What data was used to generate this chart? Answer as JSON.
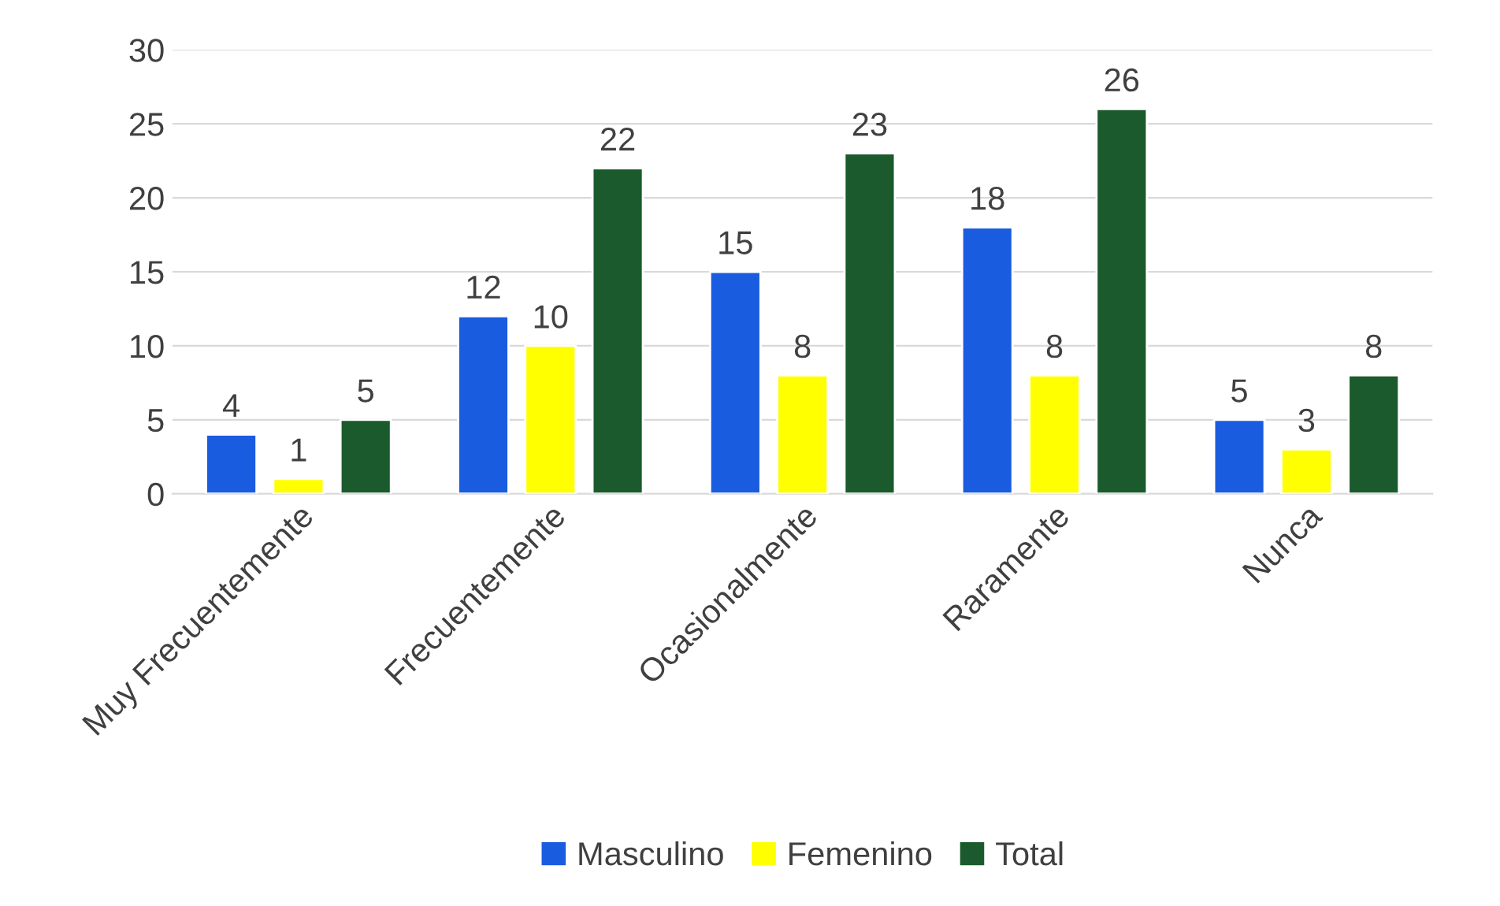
{
  "chart_data": {
    "type": "bar",
    "categories": [
      "Muy Frecuentemente",
      "Frecuentemente",
      "Ocasionalmente",
      "Raramente",
      "Nunca"
    ],
    "series": [
      {
        "name": "Masculino",
        "color": "#1a5ce0",
        "values": [
          4,
          12,
          15,
          18,
          5
        ]
      },
      {
        "name": "Femenino",
        "color": "#ffff00",
        "values": [
          1,
          10,
          8,
          8,
          3
        ]
      },
      {
        "name": "Total",
        "color": "#1a5a2c",
        "values": [
          5,
          22,
          23,
          26,
          8
        ]
      }
    ],
    "ylim": [
      0,
      30
    ],
    "yticks": [
      0,
      5,
      10,
      15,
      20,
      25,
      30
    ],
    "grid": "y",
    "legend": "bottom",
    "data_labels": true
  }
}
